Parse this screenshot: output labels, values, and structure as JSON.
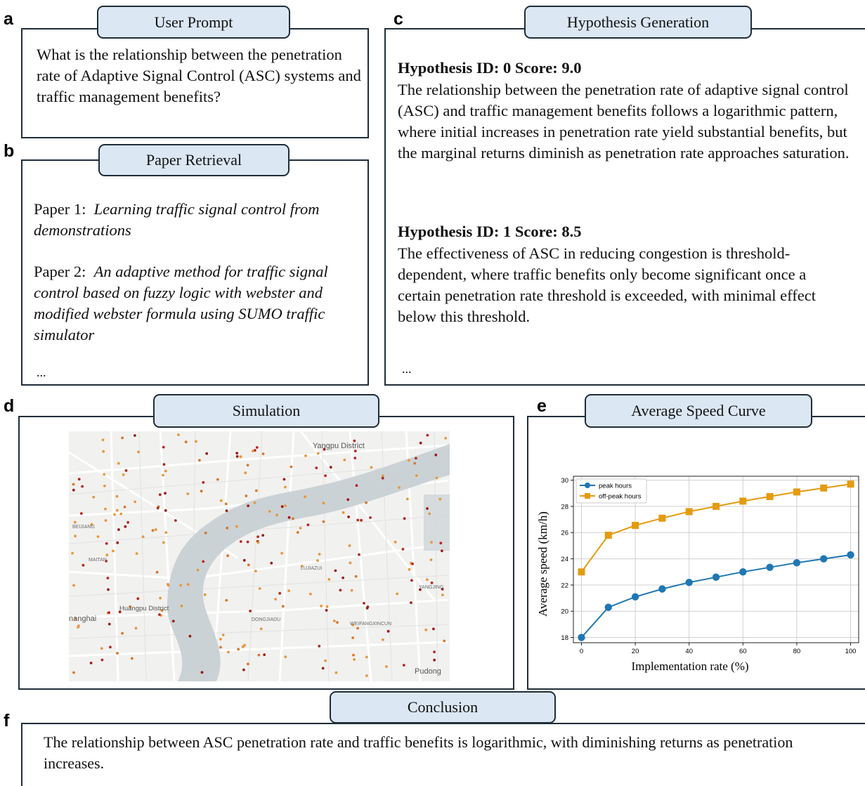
{
  "panels": {
    "a": {
      "letter": "a",
      "title": "User Prompt",
      "prompt": "What is the relationship between the penetration rate of Adaptive Signal Control (ASC) systems and traffic management benefits?"
    },
    "b": {
      "letter": "b",
      "title": "Paper Retrieval",
      "papers": [
        {
          "label": "Paper 1:",
          "title": "Learning traffic signal control from demonstrations"
        },
        {
          "label": "Paper 2:",
          "title": "An adaptive method for traffic signal control based on fuzzy logic with webster and modified webster formula using SUMO traffic simulator"
        }
      ],
      "ellipsis": "..."
    },
    "c": {
      "letter": "c",
      "title": "Hypothesis Generation",
      "hypotheses": [
        {
          "header": "Hypothesis ID: 0 Score: 9.0",
          "text": "The relationship between the penetration rate of adaptive signal control (ASC) and traffic management benefits follows a logarithmic pattern, where initial increases in penetration rate yield substantial benefits, but the marginal returns diminish as penetration rate approaches saturation."
        },
        {
          "header": "Hypothesis ID: 1 Score: 8.5",
          "text": "The effectiveness of ASC in reducing congestion is threshold-dependent, where traffic benefits only become significant once a certain penetration rate threshold is exceeded, with minimal effect below this threshold."
        }
      ],
      "ellipsis": "..."
    },
    "d": {
      "letter": "d",
      "title": "Simulation",
      "map_labels": {
        "yangpu": "Yangpu District",
        "huangpu": "Huangpu District",
        "shanghai": "nanghai",
        "pudong": "Pudong",
        "lujiazui": "LUJIAZUI",
        "weifang": "WEIFANGXINCUN",
        "yangjing": "YANGJING",
        "dongjiadu": "DONGJIADU",
        "beijiang": "BEIJIANG",
        "maitan": "MAITAN"
      }
    },
    "e": {
      "letter": "e",
      "title": "Average Speed Curve"
    },
    "f": {
      "letter": "f",
      "title": "Conclusion",
      "text": "The relationship between ASC penetration rate and traffic benefits is logarithmic, with diminishing returns as penetration increases."
    }
  },
  "chart_data": {
    "type": "line",
    "xlabel": "Implementation rate (%)",
    "ylabel": "Average speed (km/h)",
    "x": [
      0,
      10,
      20,
      30,
      40,
      50,
      60,
      70,
      80,
      90,
      100
    ],
    "xticks": [
      0,
      20,
      40,
      60,
      80,
      100
    ],
    "yticks": [
      18,
      20,
      22,
      24,
      26,
      28,
      30
    ],
    "xlim": [
      -3,
      103
    ],
    "ylim": [
      17.6,
      30.3
    ],
    "grid": true,
    "legend": "top-left",
    "series": [
      {
        "name": "peak hours",
        "color": "#1f77b4",
        "marker": "circle",
        "values": [
          18.0,
          20.3,
          21.1,
          21.7,
          22.2,
          22.6,
          23.0,
          23.35,
          23.7,
          24.0,
          24.3
        ]
      },
      {
        "name": "off-peak hours",
        "color": "#e49b0f",
        "marker": "square",
        "values": [
          23.0,
          25.8,
          26.55,
          27.1,
          27.6,
          28.0,
          28.4,
          28.75,
          29.1,
          29.4,
          29.7
        ]
      }
    ]
  }
}
